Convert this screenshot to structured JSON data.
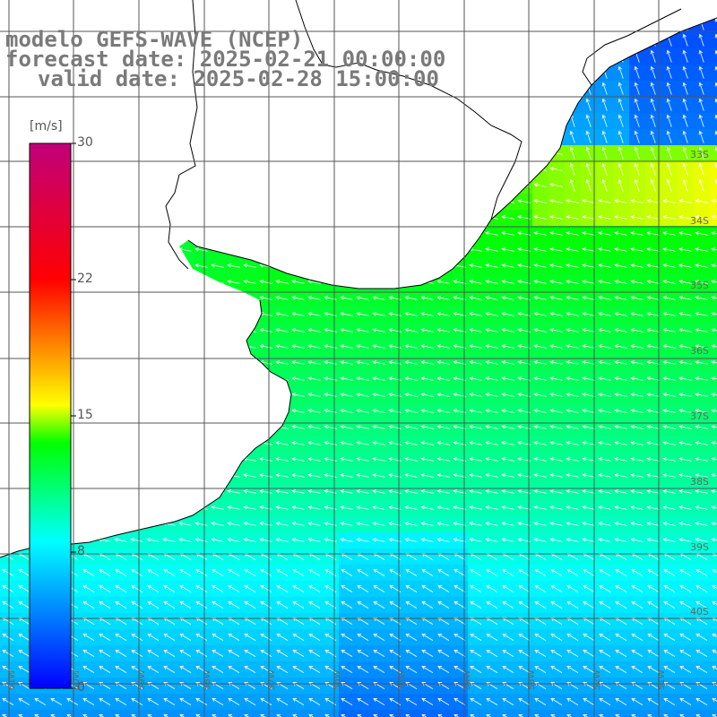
{
  "header": {
    "line1": "modelo GEFS-WAVE (NCEP)",
    "line2": "forecast date: 2025-02-21 00:00:00",
    "line3": "valid date: 2025-02-28 15:00:00"
  },
  "colorbar": {
    "unit": "[m/s]",
    "ticks": [
      "30",
      "22",
      "15",
      "8",
      "0"
    ],
    "tick_values": [
      30,
      22,
      15,
      8,
      0
    ],
    "colors": [
      "#0000ff",
      "#00ffff",
      "#00ff00",
      "#ffff00",
      "#ff0000",
      "#c0007a"
    ]
  },
  "lat_labels": [
    "33S",
    "34S",
    "35S",
    "36S",
    "37S",
    "38S",
    "39S",
    "40S"
  ],
  "lon_labels": [
    "61W",
    "60W",
    "59W",
    "58W",
    "57W",
    "56W",
    "55W",
    "54W",
    "53W",
    "52W",
    "51W"
  ],
  "map": {
    "land_color": "#ffffff",
    "coast_color": "#000000",
    "grid_color": "#555555",
    "arrow_color": "#ffffff",
    "wind_direction": "from east-southeast (arrows pointing west)"
  }
}
